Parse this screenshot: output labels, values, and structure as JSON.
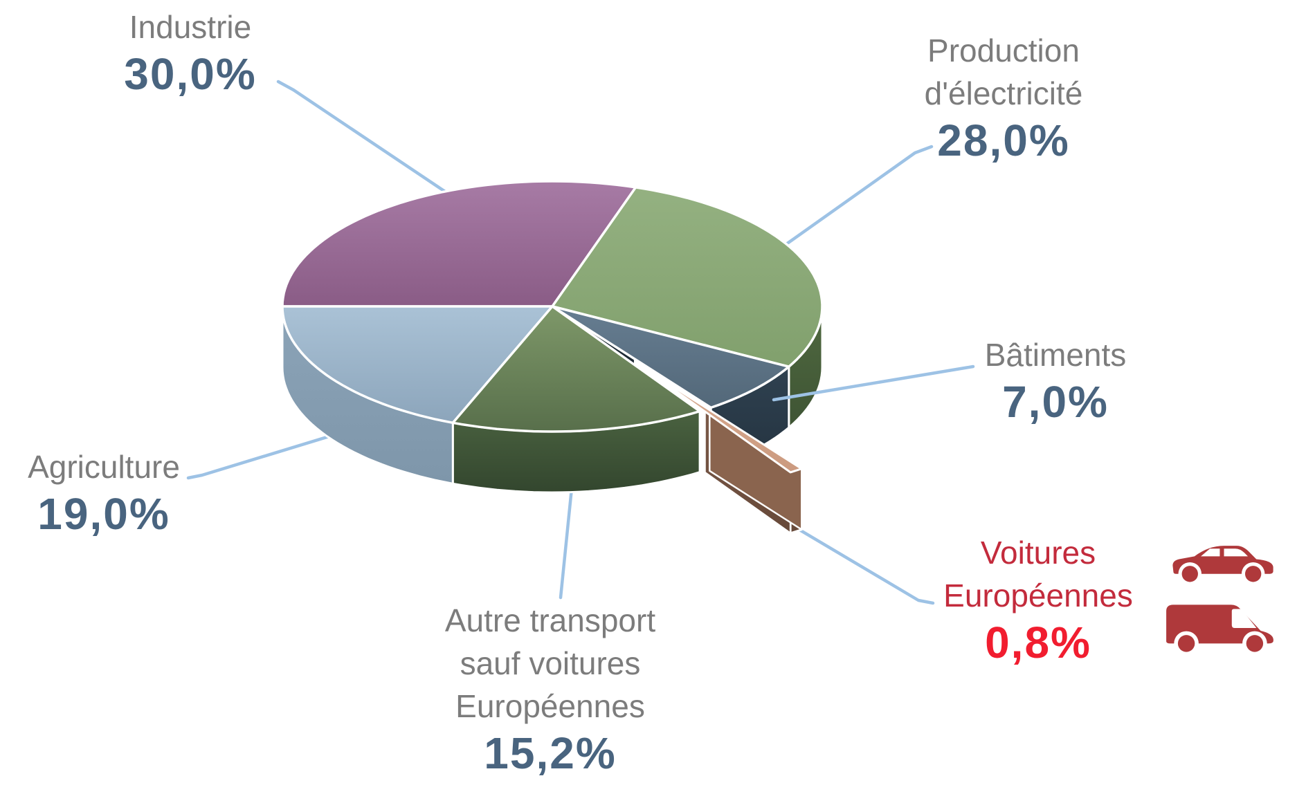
{
  "chart_data": {
    "type": "pie",
    "style": "3d-exploded-pie",
    "title": "",
    "unit": "%",
    "start_angle_deg": 270,
    "direction": "clockwise",
    "legend_position": "none",
    "exploded_slice": "Voitures Européennes",
    "slices": [
      {
        "id": "industrie",
        "label": "Industrie",
        "value": 30.0,
        "display": "30,0%",
        "top": [
          "#A77BA5",
          "#8A5C86"
        ],
        "side": [
          "#8A6E95",
          "#7A5878"
        ],
        "exploded": false
      },
      {
        "id": "production",
        "label": "Production d'électricité",
        "value": 28.0,
        "display": "28,0%",
        "top": [
          "#94B181",
          "#81A06D"
        ],
        "side": [
          "#506940",
          "#3E5434"
        ],
        "exploded": false
      },
      {
        "id": "batiments",
        "label": "Bâtiments",
        "value": 7.0,
        "display": "7,0%",
        "top": [
          "#667D91",
          "#536879"
        ],
        "side": [
          "#2F4150",
          "#243340"
        ],
        "exploded": false
      },
      {
        "id": "voitures",
        "label": "Voitures Européennes",
        "value": 0.8,
        "display": "0,8%",
        "top": [
          "#D9AC92",
          "#CB9A7F"
        ],
        "side": [
          "#7C5B4A",
          "#674939"
        ],
        "cap": "#8A644E",
        "exploded": true
      },
      {
        "id": "autre",
        "label": "Autre transport sauf voitures Européennes",
        "value": 15.2,
        "display": "15,2%",
        "top": [
          "#7E9869",
          "#586F4B"
        ],
        "side": [
          "#4A6240",
          "#33462E"
        ],
        "cut": "#6A8663",
        "exploded": false
      },
      {
        "id": "agriculture",
        "label": "Agriculture",
        "value": 19.0,
        "display": "19,0%",
        "top": [
          "#AAC2D6",
          "#8CA5BB"
        ],
        "side": [
          "#8CA4B8",
          "#7E96AA"
        ],
        "exploded": false
      }
    ]
  },
  "labels": {
    "industrie": {
      "name": "Industrie",
      "pct": "30,0%"
    },
    "production": {
      "name_line1": "Production",
      "name_line2": "d'électricité",
      "pct": "28,0%"
    },
    "batiments": {
      "name": "Bâtiments",
      "pct": "7,0%"
    },
    "voitures": {
      "name_line1": "Voitures",
      "name_line2": "Européennes",
      "pct": "0,8%"
    },
    "autre": {
      "name_line1": "Autre transport",
      "name_line2": "sauf voitures",
      "name_line3": "Européennes",
      "pct": "15,2%"
    },
    "agriculture": {
      "name": "Agriculture",
      "pct": "19,0%"
    }
  },
  "colors": {
    "label_name_gray": "#7C7C7C",
    "label_pct_blue": "#49647F",
    "highlight_name_red": "#C32B3C",
    "highlight_pct_red": "#F11D2F",
    "leader_line": "#9DC2E5",
    "vehicle_icon_red": "#AF393B",
    "gap_shadow": "#1E2B35"
  },
  "icons": {
    "car": "car-icon",
    "van": "van-icon"
  }
}
